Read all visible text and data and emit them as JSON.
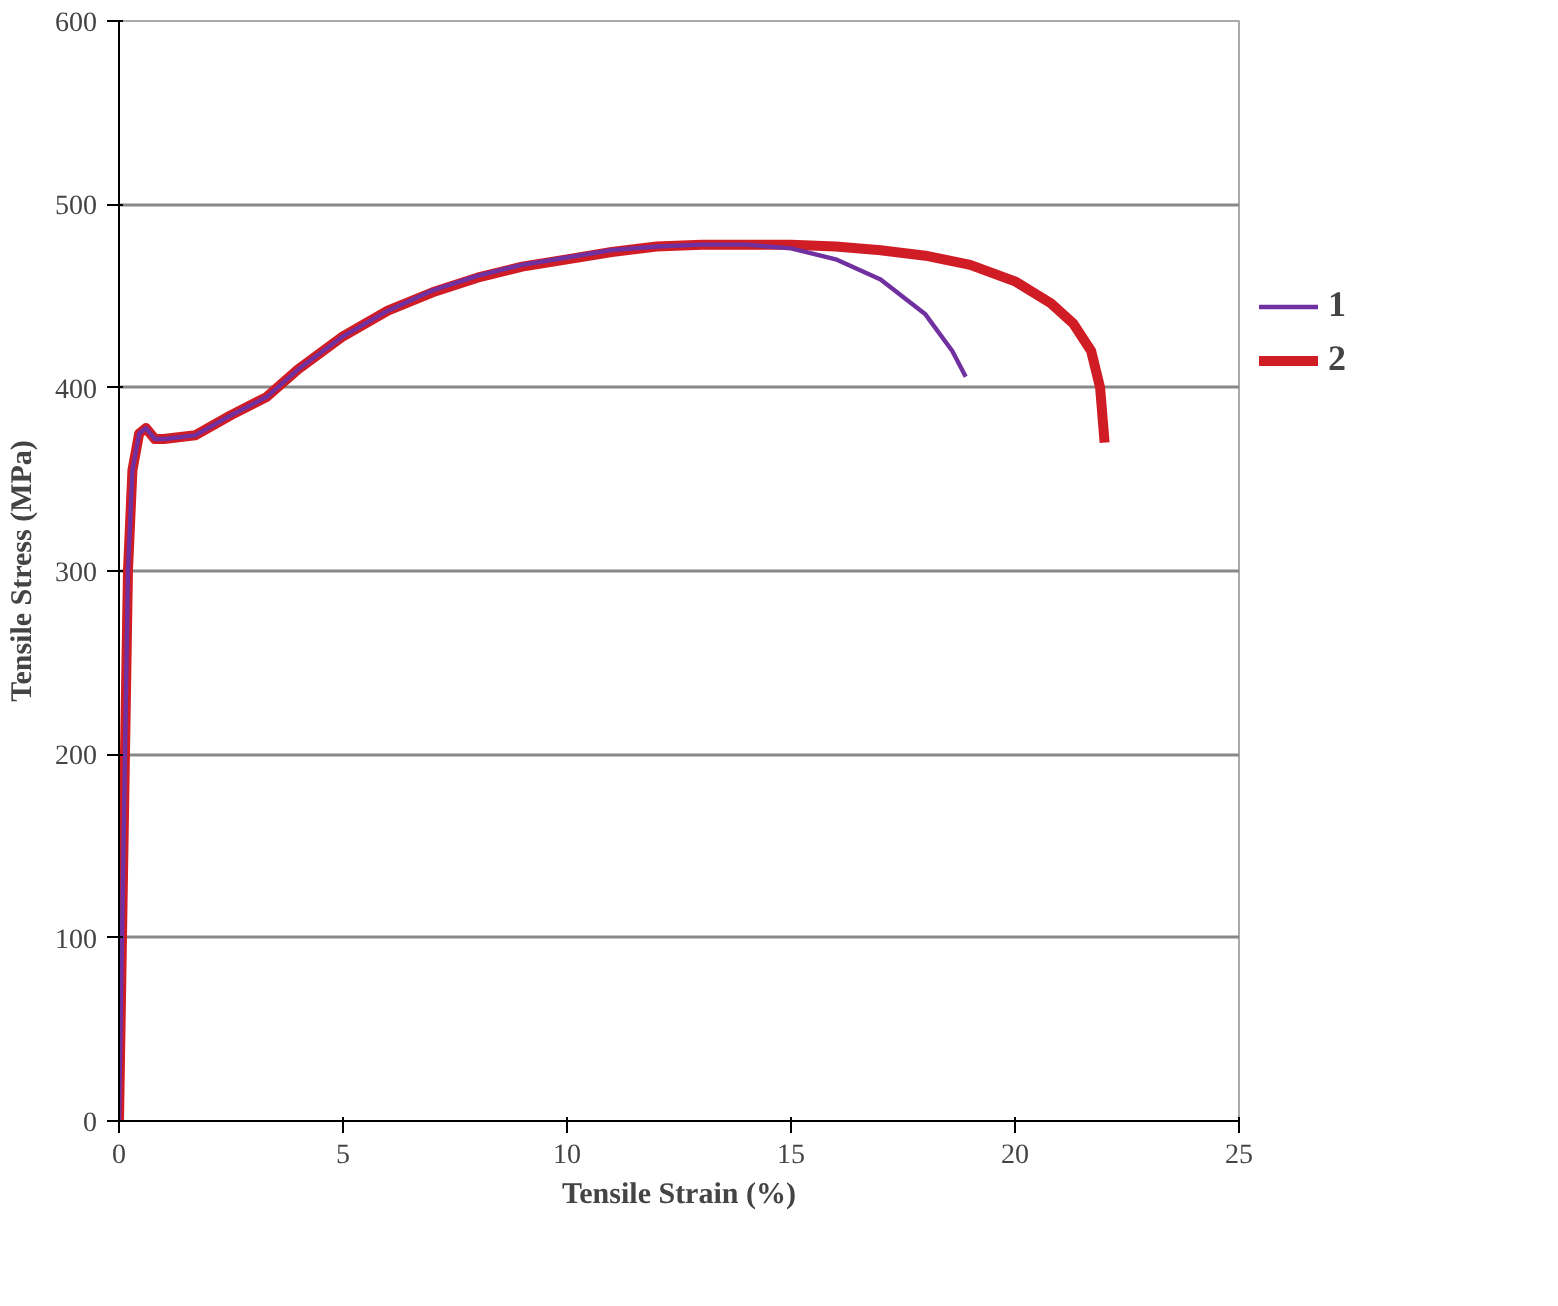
{
  "chart_data": {
    "type": "line",
    "xlabel": "Tensile Strain (%)",
    "ylabel": "Tensile Stress (MPa)",
    "xlim": [
      0,
      25
    ],
    "xticks": [
      0,
      5,
      10,
      15,
      20,
      25
    ],
    "ylim": [
      0,
      600
    ],
    "yticks": [
      0,
      100,
      200,
      300,
      400,
      500,
      600
    ],
    "grid": "y",
    "legend": "right",
    "series": [
      {
        "name": "1",
        "color": "#7030a0",
        "x": [
          0,
          0.1,
          0.2,
          0.3,
          0.45,
          0.6,
          0.8,
          1,
          1.7,
          2.5,
          3.3,
          4,
          5,
          6,
          7,
          8,
          9,
          10,
          11,
          12,
          13,
          14,
          15,
          16,
          17,
          18,
          18.6,
          18.9
        ],
        "values": [
          0,
          150,
          300,
          355,
          375,
          378,
          372,
          372,
          374,
          385,
          395,
          410,
          428,
          442,
          453,
          461,
          467,
          471,
          475,
          477,
          478,
          478,
          476,
          470,
          459,
          440,
          420,
          406
        ]
      },
      {
        "name": "2",
        "color": "#d01c24",
        "x": [
          0,
          0.1,
          0.2,
          0.3,
          0.45,
          0.6,
          0.8,
          1,
          1.7,
          2.5,
          3.3,
          4,
          5,
          6,
          7,
          8,
          9,
          10,
          11,
          12,
          13,
          14,
          15,
          16,
          17,
          18,
          19,
          20,
          20.8,
          21.3,
          21.7,
          21.9,
          22
        ],
        "values": [
          0,
          150,
          300,
          355,
          375,
          378,
          372,
          372,
          374,
          385,
          395,
          410,
          428,
          442,
          452,
          460,
          466,
          470,
          474,
          477,
          478,
          478,
          478,
          477,
          475,
          472,
          467,
          458,
          446,
          435,
          420,
          400,
          370
        ]
      }
    ]
  }
}
